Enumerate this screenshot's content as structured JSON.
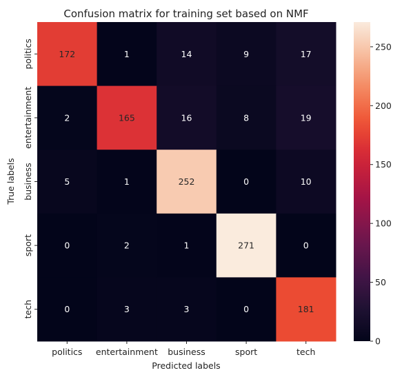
{
  "chart_data": {
    "type": "heatmap",
    "title": "Confusion matrix for training set based on NMF",
    "xlabel": "Predicted labels",
    "ylabel": "True labels",
    "x_categories": [
      "politics",
      "entertainment",
      "business",
      "sport",
      "tech"
    ],
    "y_categories": [
      "politics",
      "entertainment",
      "business",
      "sport",
      "tech"
    ],
    "values": [
      [
        172,
        1,
        14,
        9,
        17
      ],
      [
        2,
        165,
        16,
        8,
        19
      ],
      [
        5,
        1,
        252,
        0,
        10
      ],
      [
        0,
        2,
        1,
        271,
        0
      ],
      [
        0,
        3,
        3,
        0,
        181
      ]
    ],
    "colorbar": {
      "min": 0,
      "max": 271,
      "ticks": [
        0,
        50,
        100,
        150,
        200,
        250
      ]
    },
    "colormap": "rocket",
    "annotations": true
  }
}
